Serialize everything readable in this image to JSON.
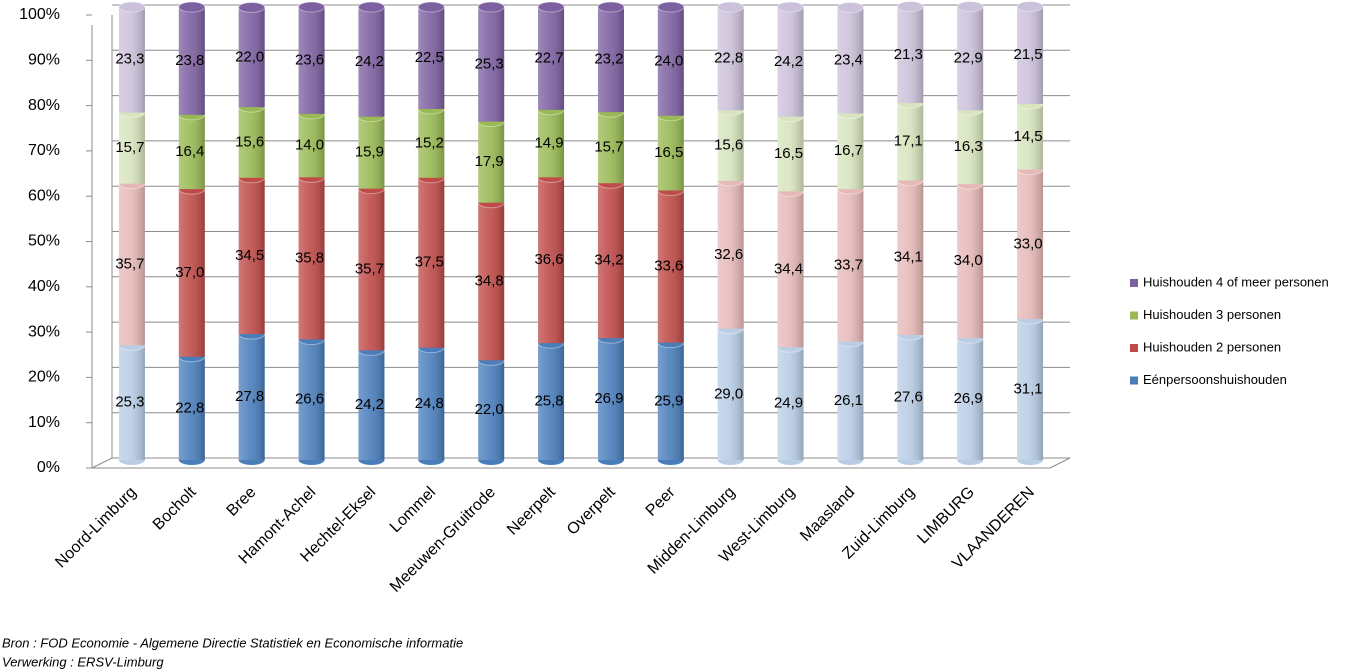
{
  "chart_data": {
    "type": "stacked-bar",
    "categories": [
      "Noord-Limburg",
      "Bocholt",
      "Bree",
      "Hamont-Achel",
      "Hechtel-Eksel",
      "Lommel",
      "Meeuwen-Gruitrode",
      "Neerpelt",
      "Overpelt",
      "Peer",
      "Midden-Limburg",
      "West-Limburg",
      "Maasland",
      "Zuid-Limburg",
      "LIMBURG",
      "VLAANDEREN"
    ],
    "series": [
      {
        "name": "Eénpersoonshuishouden",
        "color": "#4a7ebb",
        "colors": [
          "#b9cde5",
          "#4a7ebb",
          "#4a7ebb",
          "#4a7ebb",
          "#4a7ebb",
          "#4a7ebb",
          "#4a7ebb",
          "#4a7ebb",
          "#4a7ebb",
          "#4a7ebb",
          "#b9cde5",
          "#b9cde5",
          "#b9cde5",
          "#b9cde5",
          "#b9cde5",
          "#b9cde5"
        ],
        "values": [
          25.3,
          22.8,
          27.8,
          26.6,
          24.2,
          24.8,
          22.0,
          25.8,
          26.9,
          25.9,
          29.0,
          24.9,
          26.1,
          27.6,
          26.9,
          31.1
        ],
        "value_labels": [
          "25,3",
          "22,8",
          "27,8",
          "26,6",
          "24,2",
          "24,8",
          "22,0",
          "25,8",
          "26,9",
          "25,9",
          "29,0",
          "24,9",
          "26,1",
          "27,6",
          "26,9",
          "31,1"
        ]
      },
      {
        "name": "Huishouden 2 personen",
        "color": "#be4b48",
        "colors": [
          "#e6b9b8",
          "#be4b48",
          "#be4b48",
          "#be4b48",
          "#be4b48",
          "#be4b48",
          "#be4b48",
          "#be4b48",
          "#be4b48",
          "#be4b48",
          "#e6b9b8",
          "#e6b9b8",
          "#e6b9b8",
          "#e6b9b8",
          "#e6b9b8",
          "#e6b9b8"
        ],
        "values": [
          35.7,
          37.0,
          34.5,
          35.8,
          35.7,
          37.5,
          34.8,
          36.6,
          34.2,
          33.6,
          32.6,
          34.4,
          33.7,
          34.1,
          34.0,
          33.0
        ],
        "value_labels": [
          "35,7",
          "37,0",
          "34,5",
          "35,8",
          "35,7",
          "37,5",
          "34,8",
          "36,6",
          "34,2",
          "33,6",
          "32,6",
          "34,4",
          "33,7",
          "34,1",
          "34,0",
          "33,0"
        ]
      },
      {
        "name": "Huishouden 3 personen",
        "color": "#98b954",
        "colors": [
          "#d7e4bd",
          "#98b954",
          "#98b954",
          "#98b954",
          "#98b954",
          "#98b954",
          "#98b954",
          "#98b954",
          "#98b954",
          "#98b954",
          "#d7e4bd",
          "#d7e4bd",
          "#d7e4bd",
          "#d7e4bd",
          "#d7e4bd",
          "#d7e4bd"
        ],
        "values": [
          15.7,
          16.4,
          15.6,
          14.0,
          15.9,
          15.2,
          17.9,
          14.9,
          15.7,
          16.5,
          15.6,
          16.5,
          16.7,
          17.1,
          16.3,
          14.5
        ],
        "value_labels": [
          "15,7",
          "16,4",
          "15,6",
          "14,0",
          "15,9",
          "15,2",
          "17,9",
          "14,9",
          "15,7",
          "16,5",
          "15,6",
          "16,5",
          "16,7",
          "17,1",
          "16,3",
          "14,5"
        ]
      },
      {
        "name": "Huishouden 4 of meer personen",
        "color": "#7d60a0",
        "colors": [
          "#ccc1da",
          "#7d60a0",
          "#7d60a0",
          "#7d60a0",
          "#7d60a0",
          "#7d60a0",
          "#7d60a0",
          "#7d60a0",
          "#7d60a0",
          "#7d60a0",
          "#ccc1da",
          "#ccc1da",
          "#ccc1da",
          "#ccc1da",
          "#ccc1da",
          "#ccc1da"
        ],
        "values": [
          23.3,
          23.8,
          22.0,
          23.6,
          24.2,
          22.5,
          25.3,
          22.7,
          23.2,
          24.0,
          22.8,
          24.2,
          23.4,
          21.3,
          22.9,
          21.5
        ],
        "value_labels": [
          "23,3",
          "23,8",
          "22,0",
          "23,6",
          "24,2",
          "22,5",
          "25,3",
          "22,7",
          "23,2",
          "24,0",
          "22,8",
          "24,2",
          "23,4",
          "21,3",
          "22,9",
          "21,5"
        ]
      }
    ],
    "ylim": [
      0,
      100
    ],
    "yticks": [
      {
        "value": 0,
        "label": "0%"
      },
      {
        "value": 10,
        "label": "10%"
      },
      {
        "value": 20,
        "label": "20%"
      },
      {
        "value": 30,
        "label": "30%"
      },
      {
        "value": 40,
        "label": "40%"
      },
      {
        "value": 50,
        "label": "50%"
      },
      {
        "value": 60,
        "label": "60%"
      },
      {
        "value": 70,
        "label": "70%"
      },
      {
        "value": 80,
        "label": "80%"
      },
      {
        "value": 90,
        "label": "90%"
      },
      {
        "value": 100,
        "label": "100%"
      }
    ],
    "grid": true,
    "legend": "right",
    "source": "Bron : FOD Economie - Algemene Directie Statistiek en Economische informatie",
    "processing": "Verwerking : ERSV-Limburg"
  }
}
